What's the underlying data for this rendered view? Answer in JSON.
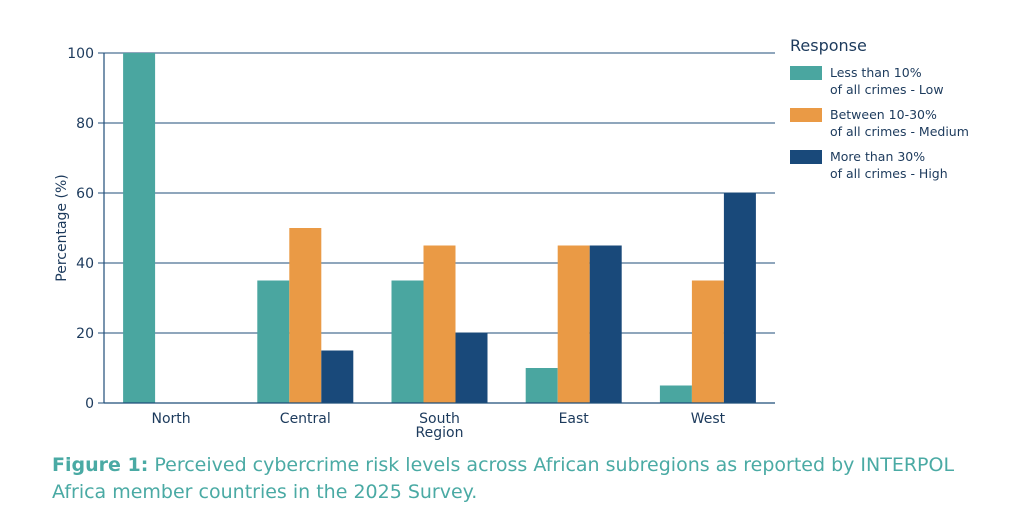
{
  "chart_data": {
    "type": "bar",
    "categories": [
      "North",
      "Central",
      "South\nRegion",
      "East",
      "West"
    ],
    "series": [
      {
        "name": "Less than 10%\nof all crimes - Low",
        "color": "#4aa6a0",
        "values": [
          100,
          35,
          35,
          10,
          5
        ]
      },
      {
        "name": "Between 10-30%\nof all crimes - Medium",
        "color": "#ea9a45",
        "values": [
          0,
          50,
          45,
          45,
          35
        ]
      },
      {
        "name": "More than 30%\nof all crimes - High",
        "color": "#19497a",
        "values": [
          0,
          15,
          20,
          45,
          60
        ]
      }
    ],
    "ylabel": "Percentage (%)",
    "xlabel": "",
    "ylim": [
      0,
      100
    ],
    "yticks": [
      0,
      20,
      40,
      60,
      80,
      100
    ],
    "grid": true,
    "legend_title": "Response",
    "legend_position": "top-right"
  },
  "caption": {
    "label": "Figure 1:",
    "text": " Perceived cybercrime risk levels across African subregions as reported by INTERPOL Africa member countries in the 2025 Survey."
  }
}
